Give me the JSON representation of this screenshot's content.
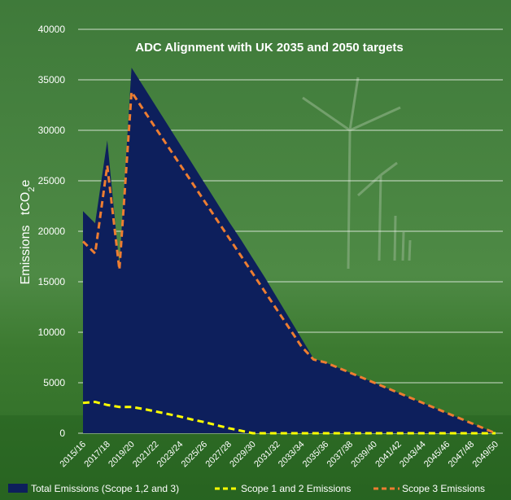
{
  "chart_data": {
    "type": "area",
    "title": "ADC Alignment with UK 2035 and 2050 targets",
    "ylabel_main": "Emissions",
    "ylabel_unit_prefix": "tCO",
    "ylabel_unit_sub": "2",
    "ylabel_unit_suffix": "e",
    "ylim": [
      0,
      40000
    ],
    "yticks": [
      "0",
      "5000",
      "10000",
      "15000",
      "20000",
      "25000",
      "30000",
      "35000",
      "40000"
    ],
    "grid": true,
    "legend_position": "bottom",
    "x_tick_labels": [
      "2015/16",
      "2017/18",
      "2019/20",
      "2021/22",
      "2023/24",
      "2025/26",
      "2027/28",
      "2029/30",
      "2031/32",
      "2033/34",
      "2035/36",
      "2037/38",
      "2039/40",
      "2041/42",
      "2043/44",
      "2045/46",
      "2047/48",
      "2049/50"
    ],
    "x_count": 35,
    "series": [
      {
        "name": "Total Emissions (Scope 1,2 and 3)",
        "color": "#0d1f5c",
        "style": "area",
        "points": [
          [
            0,
            22000
          ],
          [
            1,
            20800
          ],
          [
            2,
            29000
          ],
          [
            3,
            16600
          ],
          [
            4,
            36200
          ],
          [
            5,
            34300
          ],
          [
            6,
            32400
          ],
          [
            7,
            30500
          ],
          [
            8,
            28600
          ],
          [
            9,
            26700
          ],
          [
            10,
            24800
          ],
          [
            11,
            22900
          ],
          [
            12,
            21000
          ],
          [
            13,
            19200
          ],
          [
            14,
            17300
          ],
          [
            15,
            15400
          ],
          [
            16,
            13400
          ],
          [
            17,
            11400
          ],
          [
            18,
            9400
          ],
          [
            19,
            7400
          ],
          [
            20,
            7000
          ],
          [
            21,
            6500
          ],
          [
            22,
            6000
          ],
          [
            23,
            5500
          ],
          [
            24,
            5000
          ],
          [
            25,
            4500
          ],
          [
            26,
            4000
          ],
          [
            27,
            3500
          ],
          [
            28,
            3000
          ],
          [
            29,
            2500
          ],
          [
            30,
            2000
          ],
          [
            31,
            1500
          ],
          [
            32,
            1000
          ],
          [
            33,
            500
          ],
          [
            34,
            0
          ]
        ]
      },
      {
        "name": "Scope 1 and 2 Emissions",
        "color": "#ffff00",
        "style": "dashed",
        "points": [
          [
            0,
            3000
          ],
          [
            1,
            3100
          ],
          [
            2,
            2800
          ],
          [
            3,
            2600
          ],
          [
            4,
            2600
          ],
          [
            5,
            2400
          ],
          [
            6,
            2150
          ],
          [
            7,
            1900
          ],
          [
            8,
            1650
          ],
          [
            9,
            1350
          ],
          [
            10,
            1100
          ],
          [
            11,
            800
          ],
          [
            12,
            500
          ],
          [
            13,
            250
          ],
          [
            14,
            0
          ],
          [
            15,
            0
          ],
          [
            16,
            0
          ],
          [
            17,
            0
          ],
          [
            18,
            0
          ],
          [
            19,
            0
          ],
          [
            20,
            0
          ],
          [
            21,
            0
          ],
          [
            22,
            0
          ],
          [
            23,
            0
          ],
          [
            24,
            0
          ],
          [
            25,
            0
          ],
          [
            26,
            0
          ],
          [
            27,
            0
          ],
          [
            28,
            0
          ],
          [
            29,
            0
          ],
          [
            30,
            0
          ],
          [
            31,
            0
          ],
          [
            32,
            0
          ],
          [
            33,
            0
          ],
          [
            34,
            0
          ]
        ]
      },
      {
        "name": "Scope 3 Emissions",
        "color": "#ed7d31",
        "style": "dashed",
        "points": [
          [
            0,
            19000
          ],
          [
            1,
            17800
          ],
          [
            2,
            26500
          ],
          [
            3,
            16200
          ],
          [
            4,
            33800
          ],
          [
            5,
            32000
          ],
          [
            6,
            30200
          ],
          [
            7,
            28400
          ],
          [
            8,
            26600
          ],
          [
            9,
            24800
          ],
          [
            10,
            23000
          ],
          [
            11,
            21200
          ],
          [
            12,
            19400
          ],
          [
            13,
            17600
          ],
          [
            14,
            15800
          ],
          [
            15,
            14000
          ],
          [
            16,
            12200
          ],
          [
            17,
            10400
          ],
          [
            18,
            8600
          ],
          [
            19,
            7300
          ],
          [
            20,
            7000
          ],
          [
            21,
            6500
          ],
          [
            22,
            6000
          ],
          [
            23,
            5500
          ],
          [
            24,
            5000
          ],
          [
            25,
            4500
          ],
          [
            26,
            4000
          ],
          [
            27,
            3500
          ],
          [
            28,
            3000
          ],
          [
            29,
            2500
          ],
          [
            30,
            2000
          ],
          [
            31,
            1500
          ],
          [
            32,
            1000
          ],
          [
            33,
            500
          ],
          [
            34,
            0
          ]
        ]
      }
    ]
  }
}
